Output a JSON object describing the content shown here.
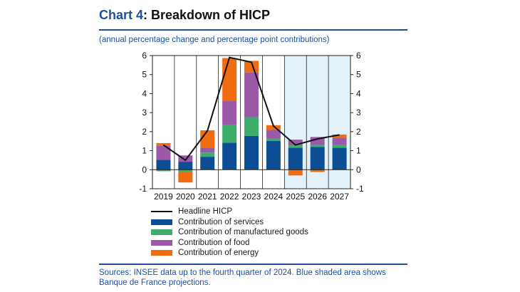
{
  "header": {
    "chart_number": "Chart 4",
    "title_rest": ": Breakdown of HICP",
    "subtitle": "(annual percentage change and percentage point contributions)"
  },
  "footer": {
    "source": "Sources: INSEE data up to the fourth quarter of 2024. Blue shaded area shows Banque de France projections."
  },
  "colors": {
    "services": "#0b4e96",
    "manufactured": "#3dae6a",
    "food": "#9b59a8",
    "energy": "#ef6c12",
    "headline": "#111111",
    "projection_shade": "#e3f1fa",
    "accent": "#1c4f9c"
  },
  "chart_data": {
    "type": "bar",
    "stacked": true,
    "categories": [
      "2019",
      "2020",
      "2021",
      "2022",
      "2023",
      "2024",
      "2025",
      "2026",
      "2027"
    ],
    "ylim": [
      -1,
      6
    ],
    "yticks": [
      -1,
      0,
      1,
      2,
      3,
      4,
      5,
      6
    ],
    "projection_start_index": 6,
    "series": [
      {
        "key": "services",
        "name": "Contribution of services",
        "values": [
          0.52,
          0.42,
          0.68,
          1.42,
          1.78,
          1.52,
          1.15,
          1.2,
          1.15
        ]
      },
      {
        "key": "manufactured",
        "name": "Contribution of manufactured goods",
        "values": [
          -0.08,
          -0.1,
          0.22,
          0.95,
          0.98,
          0.12,
          0.13,
          0.1,
          0.15
        ]
      },
      {
        "key": "food",
        "name": "Contribution of food",
        "values": [
          0.75,
          0.33,
          0.25,
          1.25,
          2.35,
          0.45,
          0.3,
          0.42,
          0.38
        ]
      },
      {
        "key": "energy",
        "name": "Contribution of energy",
        "values": [
          0.13,
          -0.57,
          0.92,
          2.25,
          0.61,
          0.25,
          -0.3,
          -0.12,
          0.17
        ]
      }
    ],
    "line": {
      "name": "Headline HICP",
      "values": [
        1.3,
        0.5,
        2.05,
        5.9,
        5.65,
        2.3,
        1.3,
        1.62,
        1.83
      ]
    }
  }
}
